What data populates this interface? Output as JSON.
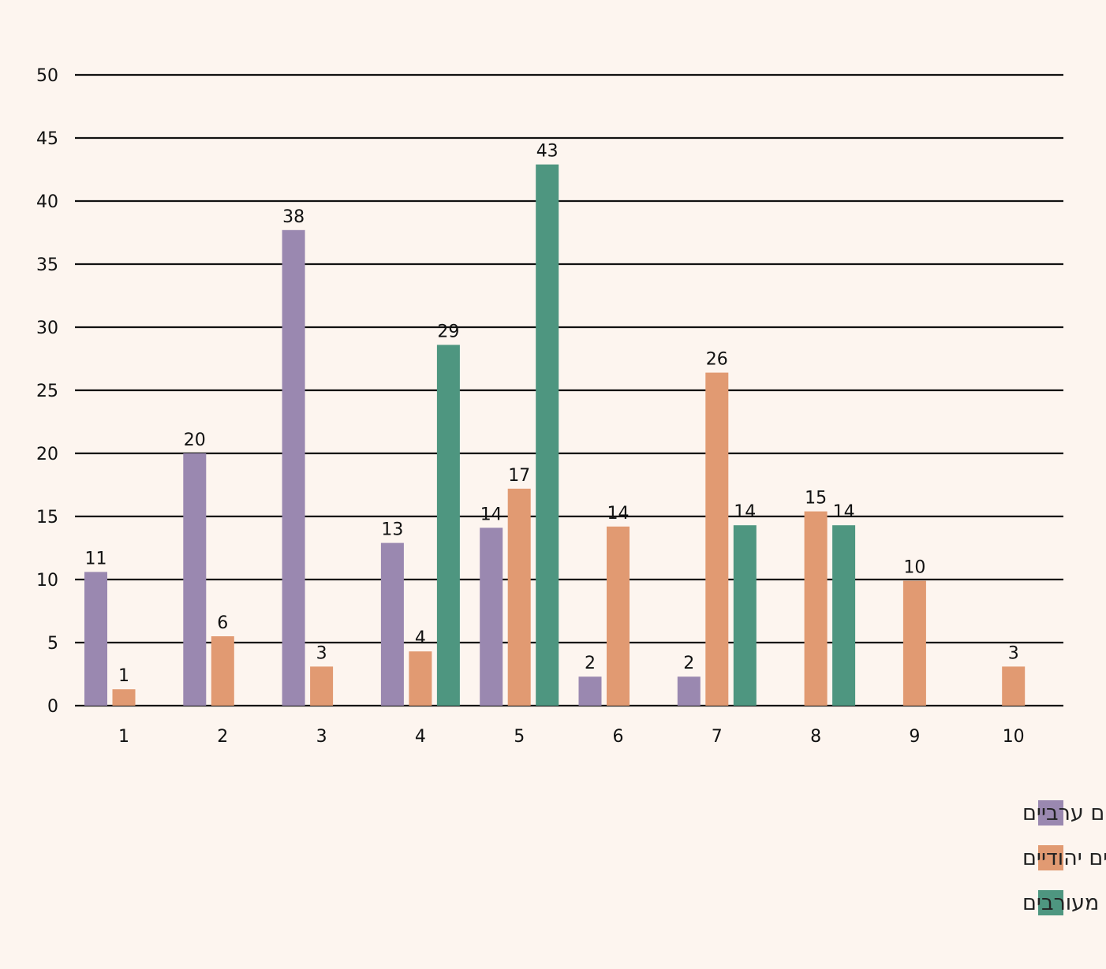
{
  "chart_data": {
    "type": "bar",
    "categories": [
      "1",
      "2",
      "3",
      "4",
      "5",
      "6",
      "7",
      "8",
      "9",
      "10"
    ],
    "series": [
      {
        "name": "יישובים ערביים",
        "color": "#9a88b0",
        "values": [
          10.6,
          20,
          37.7,
          12.9,
          14.1,
          2.3,
          2.3,
          null,
          null,
          null
        ],
        "labels": [
          "11",
          "20",
          "38",
          "13",
          "14",
          "2",
          "2",
          null,
          null,
          null
        ]
      },
      {
        "name": "יישובים יהודיים",
        "color": "#e19a72",
        "values": [
          1.3,
          5.5,
          3.1,
          4.3,
          17.2,
          14.2,
          26.4,
          15.4,
          9.9,
          3.1
        ],
        "labels": [
          "1",
          "6",
          "3",
          "4",
          "17",
          "14",
          "26",
          "15",
          "10",
          "3"
        ]
      },
      {
        "name": "יישובים מעורבים",
        "color": "#4e9680",
        "values": [
          null,
          null,
          null,
          28.6,
          42.9,
          null,
          14.3,
          14.3,
          null,
          null
        ],
        "labels": [
          null,
          null,
          null,
          "29",
          "43",
          null,
          "14",
          "14",
          null,
          null
        ]
      }
    ],
    "yticks": [
      "0",
      "5",
      "10",
      "15",
      "20",
      "25",
      "30",
      "35",
      "40",
      "45",
      "50"
    ],
    "ylim": [
      0,
      50
    ],
    "grid": true,
    "legend_position": "bottom-right",
    "title": "",
    "xlabel": "",
    "ylabel": ""
  }
}
